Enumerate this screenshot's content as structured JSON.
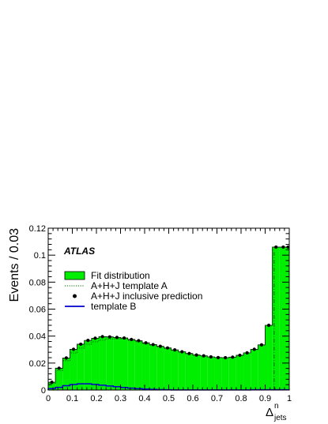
{
  "chart_data": {
    "type": "bar",
    "subtype": "histogram",
    "experiment_label": "ATLAS",
    "xlabel_main": "Δ",
    "xlabel_sup": "n",
    "xlabel_sub": "jets",
    "ylabel": "Events / 0.03",
    "xlim": [
      0,
      1
    ],
    "ylim": [
      0,
      0.12
    ],
    "x_ticks": [
      "0",
      "0.1",
      "0.2",
      "0.3",
      "0.4",
      "0.5",
      "0.6",
      "0.7",
      "0.8",
      "0.9",
      "1"
    ],
    "y_ticks": [
      "0",
      "0.02",
      "0.04",
      "0.06",
      "0.08",
      "0.1",
      "0.12"
    ],
    "bin_edges": [
      0,
      0.03,
      0.06,
      0.09,
      0.12,
      0.15,
      0.18,
      0.21,
      0.24,
      0.27,
      0.3,
      0.33,
      0.36,
      0.39,
      0.42,
      0.45,
      0.48,
      0.51,
      0.54,
      0.57,
      0.6,
      0.63,
      0.66,
      0.69,
      0.72,
      0.75,
      0.78,
      0.81,
      0.84,
      0.87,
      0.9,
      0.93,
      0.96,
      0.99,
      1.0
    ],
    "legend": {
      "position": "top-left",
      "entries": [
        {
          "label": "Fit distribution",
          "style": "filled-box",
          "color": "#00ee00"
        },
        {
          "label": "A+H+J template A",
          "style": "dotted-line",
          "color": "#006600"
        },
        {
          "label": "A+H+J inclusive prediction",
          "style": "marker",
          "color": "#000000"
        },
        {
          "label": "template B",
          "style": "solid-line",
          "color": "#0000cc"
        }
      ]
    },
    "series": [
      {
        "name": "Fit distribution",
        "style": "filled-histogram",
        "color": "#00ee00",
        "values": [
          0.0058,
          0.0162,
          0.0238,
          0.0302,
          0.034,
          0.0368,
          0.0384,
          0.0396,
          0.0394,
          0.039,
          0.0386,
          0.0375,
          0.0366,
          0.035,
          0.0337,
          0.0324,
          0.0312,
          0.0298,
          0.0284,
          0.0271,
          0.026,
          0.0254,
          0.0246,
          0.0241,
          0.024,
          0.0244,
          0.0258,
          0.0276,
          0.0302,
          0.0335,
          0.048,
          0.106,
          0.106,
          0.106
        ]
      },
      {
        "name": "A+H+J template A",
        "style": "dotted-histogram",
        "color": "#006600",
        "values": [
          0.005,
          0.0145,
          0.0218,
          0.0275,
          0.0312,
          0.034,
          0.0358,
          0.037,
          0.0378,
          0.038,
          0.0378,
          0.0368,
          0.0359,
          0.0345,
          0.0332,
          0.032,
          0.0308,
          0.0295,
          0.0282,
          0.0269,
          0.0258,
          0.0252,
          0.0245,
          0.024,
          0.0239,
          0.0243,
          0.0257,
          0.0275,
          0.03,
          0.0333,
          0.0478,
          0.1058,
          0.1058,
          0.1058
        ]
      },
      {
        "name": "A+H+J inclusive prediction",
        "style": "markers",
        "color": "#000000",
        "values": [
          0.0058,
          0.0162,
          0.0238,
          0.0302,
          0.034,
          0.0368,
          0.0384,
          0.0396,
          0.0394,
          0.039,
          0.0386,
          0.0375,
          0.0366,
          0.035,
          0.0337,
          0.0324,
          0.0312,
          0.0298,
          0.0284,
          0.0271,
          0.026,
          0.0254,
          0.0246,
          0.0241,
          0.024,
          0.0244,
          0.0258,
          0.0276,
          0.0302,
          0.0335,
          0.048,
          0.106,
          0.106,
          0.106
        ]
      },
      {
        "name": "template B",
        "style": "solid-histogram",
        "color": "#0000cc",
        "values": [
          0.001,
          0.002,
          0.0032,
          0.0041,
          0.0046,
          0.0046,
          0.0042,
          0.0036,
          0.003,
          0.0025,
          0.0019,
          0.0014,
          0.001,
          0.0007,
          0.0005,
          0.0003,
          0.0002,
          0.0001,
          0.0001,
          0.0001,
          0.0001,
          0.0001,
          0.0001,
          0.0001,
          0.0001,
          0.0001,
          0.0001,
          0.0001,
          0.0002,
          0.0002,
          0.0002,
          0.0002,
          0.0002,
          0.0002
        ]
      }
    ],
    "vertical_marker": {
      "x": 0.937,
      "color": "#006600",
      "style": "dash-dot",
      "ymax": 0.104
    }
  }
}
